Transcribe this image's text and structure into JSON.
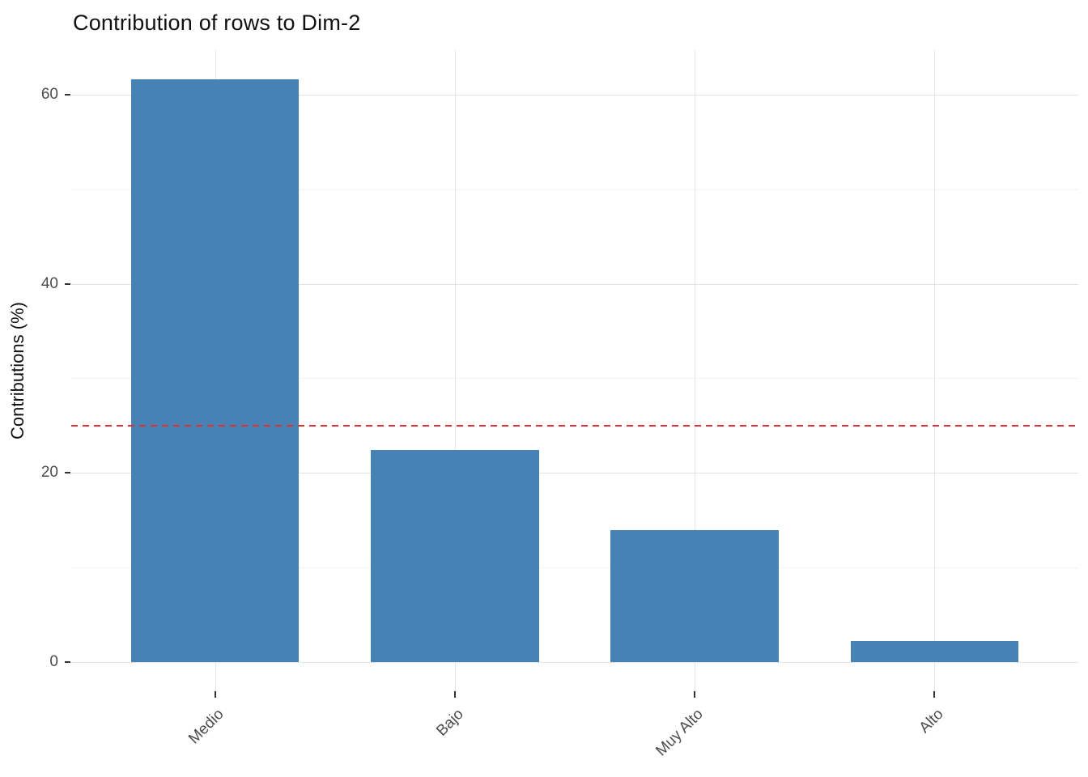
{
  "chart_data": {
    "type": "bar",
    "title": "Contribution of rows to Dim-2",
    "xlabel": "",
    "ylabel": "Contributions (%)",
    "categories": [
      "Medio",
      "Bajo",
      "Muy Alto",
      "Alto"
    ],
    "values": [
      61.6,
      22.4,
      13.9,
      2.2
    ],
    "ylim": [
      -3.1,
      64.7
    ],
    "yticks": [
      0,
      20,
      40,
      60
    ],
    "yticks_minor": [
      10,
      30,
      50
    ],
    "grid": true,
    "legend": "none",
    "x_tick_rotation": 45,
    "bar_color": "#4682B4",
    "reference_line": {
      "value": 25,
      "style": "dashed",
      "color": "#DD3333"
    },
    "text_color": "#4d4d4d"
  }
}
